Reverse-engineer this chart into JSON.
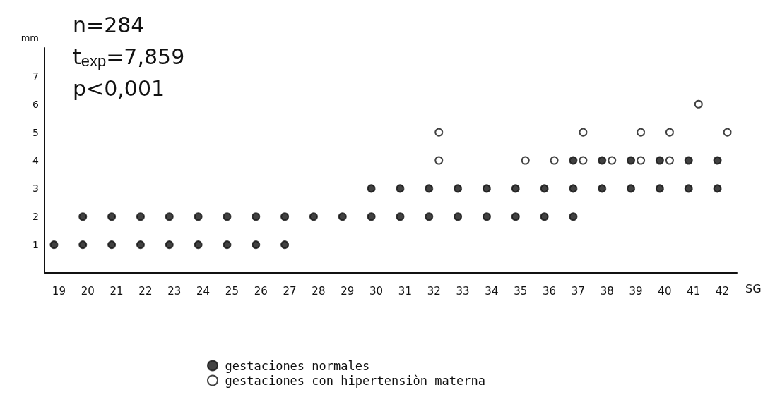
{
  "chart_data": {
    "type": "scatter",
    "ylabel": "mm",
    "xlabel": "SG",
    "annotations": [
      "n=284",
      "t$_{exp}$=7,859",
      "p<0,001"
    ],
    "categories": [
      "19",
      "20",
      "21",
      "22",
      "23",
      "24",
      "25",
      "26",
      "27",
      "28",
      "29",
      "30",
      "31",
      "32",
      "33",
      "34",
      "35",
      "36",
      "37",
      "38",
      "39",
      "40",
      "41",
      "42"
    ],
    "ylim": [
      0,
      8
    ],
    "yticks": [
      1,
      2,
      3,
      4,
      5,
      6,
      7
    ],
    "grid": false,
    "legend": "bottom",
    "marker": "circle",
    "series": [
      {
        "name": "gestaciones normales",
        "color": "#111111",
        "x": [
          "19",
          "20",
          "20",
          "21",
          "21",
          "22",
          "22",
          "23",
          "23",
          "24",
          "24",
          "25",
          "25",
          "26",
          "26",
          "27",
          "27",
          "28",
          "29",
          "30",
          "30",
          "31",
          "31",
          "32",
          "32",
          "33",
          "33",
          "34",
          "34",
          "35",
          "35",
          "36",
          "36",
          "37",
          "37",
          "37",
          "38",
          "38",
          "39",
          "39",
          "40",
          "40",
          "41",
          "41",
          "42",
          "42"
        ],
        "values": [
          1,
          1,
          2,
          1,
          2,
          1,
          2,
          1,
          2,
          1,
          2,
          1,
          2,
          1,
          2,
          1,
          2,
          2,
          2,
          2,
          3,
          2,
          3,
          2,
          3,
          2,
          3,
          2,
          3,
          2,
          3,
          2,
          3,
          2,
          3,
          4,
          3,
          4,
          3,
          4,
          3,
          4,
          3,
          4,
          3,
          4
        ]
      },
      {
        "name": "gestaciones con hipertensiòn materna",
        "color": "#111111",
        "x": [
          "32",
          "32",
          "35",
          "36",
          "37",
          "37",
          "38",
          "39",
          "39",
          "40",
          "40",
          "41",
          "42"
        ],
        "values": [
          4,
          5,
          4,
          4,
          4,
          5,
          4,
          4,
          5,
          4,
          5,
          6,
          5
        ]
      }
    ]
  }
}
